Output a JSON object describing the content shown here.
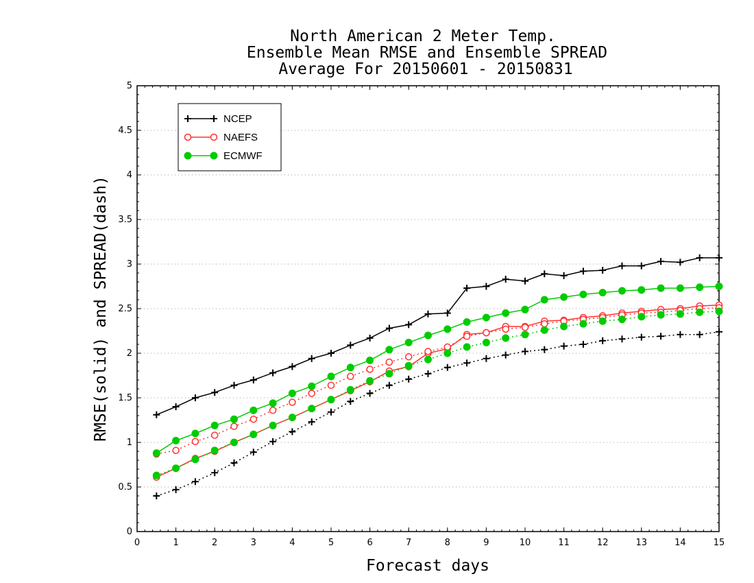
{
  "chart_data": {
    "type": "line",
    "title": [
      "North American 2 Meter Temp.",
      "Ensemble Mean RMSE and Ensemble SPREAD",
      "Average For 20150601 - 20150831"
    ],
    "xlabel": "Forecast days",
    "ylabel": "RMSE(solid) and SPREAD(dash)",
    "xlim": [
      0,
      15
    ],
    "ylim": [
      0,
      5
    ],
    "xticks": [
      0,
      1,
      2,
      3,
      4,
      5,
      6,
      7,
      8,
      9,
      10,
      11,
      12,
      13,
      14,
      15
    ],
    "yticks": [
      0,
      0.5,
      1,
      1.5,
      2,
      2.5,
      3,
      3.5,
      4,
      4.5,
      5
    ],
    "ytick_labels": [
      "0",
      "0.5",
      "1",
      "1.5",
      "2",
      "2.5",
      "3",
      "3.5",
      "4",
      "4.5",
      "5"
    ],
    "grid": "horizontal dotted",
    "legend_placement": "top-left",
    "x": [
      0.5,
      1.0,
      1.5,
      2.0,
      2.5,
      3.0,
      3.5,
      4.0,
      4.5,
      5.0,
      5.5,
      6.0,
      6.5,
      7.0,
      7.5,
      8.0,
      8.5,
      9.0,
      9.5,
      10.0,
      10.5,
      11.0,
      11.5,
      12.0,
      12.5,
      13.0,
      13.5,
      14.0,
      14.5,
      15.0
    ],
    "series": [
      {
        "name": "NCEP",
        "metric": "RMSE",
        "style": "solid",
        "marker": "plus",
        "color": "#000000",
        "values": [
          1.31,
          1.4,
          1.5,
          1.56,
          1.64,
          1.7,
          1.78,
          1.85,
          1.94,
          2.0,
          2.09,
          2.17,
          2.28,
          2.32,
          2.44,
          2.45,
          2.73,
          2.75,
          2.83,
          2.81,
          2.89,
          2.87,
          2.92,
          2.93,
          2.98,
          2.98,
          3.03,
          3.02,
          3.07,
          3.07
        ]
      },
      {
        "name": "NCEP",
        "metric": "SPREAD",
        "style": "dash",
        "marker": "plus",
        "color": "#000000",
        "values": [
          0.4,
          0.47,
          0.56,
          0.66,
          0.77,
          0.89,
          1.01,
          1.12,
          1.23,
          1.34,
          1.46,
          1.55,
          1.64,
          1.71,
          1.77,
          1.84,
          1.89,
          1.94,
          1.98,
          2.02,
          2.04,
          2.08,
          2.1,
          2.14,
          2.16,
          2.18,
          2.19,
          2.21,
          2.21,
          2.24
        ]
      },
      {
        "name": "NAEFS",
        "metric": "RMSE",
        "style": "solid",
        "marker": "open-circle",
        "color": "#ff3030",
        "values": [
          0.61,
          0.71,
          0.82,
          0.9,
          1.0,
          1.09,
          1.19,
          1.28,
          1.38,
          1.48,
          1.58,
          1.68,
          1.8,
          1.85,
          2.0,
          2.05,
          2.21,
          2.23,
          2.3,
          2.3,
          2.36,
          2.37,
          2.4,
          2.42,
          2.45,
          2.47,
          2.49,
          2.5,
          2.53,
          2.54
        ]
      },
      {
        "name": "NAEFS",
        "metric": "SPREAD",
        "style": "dash",
        "marker": "open-circle",
        "color": "#ff3030",
        "values": [
          0.87,
          0.91,
          1.01,
          1.08,
          1.18,
          1.26,
          1.36,
          1.45,
          1.55,
          1.64,
          1.74,
          1.82,
          1.9,
          1.96,
          2.02,
          2.07,
          2.19,
          2.23,
          2.27,
          2.29,
          2.33,
          2.36,
          2.38,
          2.4,
          2.43,
          2.45,
          2.46,
          2.48,
          2.5,
          2.51
        ]
      },
      {
        "name": "ECMWF",
        "metric": "RMSE",
        "style": "solid",
        "marker": "filled-circle",
        "color": "#00cc00",
        "values": [
          0.88,
          1.02,
          1.1,
          1.19,
          1.26,
          1.36,
          1.44,
          1.55,
          1.63,
          1.74,
          1.84,
          1.92,
          2.04,
          2.12,
          2.2,
          2.27,
          2.35,
          2.4,
          2.45,
          2.49,
          2.6,
          2.63,
          2.66,
          2.68,
          2.7,
          2.71,
          2.73,
          2.73,
          2.74,
          2.75
        ]
      },
      {
        "name": "ECMWF",
        "metric": "SPREAD",
        "style": "dash",
        "marker": "filled-circle",
        "color": "#00cc00",
        "values": [
          0.63,
          0.71,
          0.81,
          0.91,
          1.0,
          1.09,
          1.19,
          1.28,
          1.38,
          1.48,
          1.59,
          1.69,
          1.77,
          1.86,
          1.93,
          2.0,
          2.07,
          2.12,
          2.17,
          2.21,
          2.26,
          2.3,
          2.33,
          2.36,
          2.38,
          2.41,
          2.43,
          2.44,
          2.46,
          2.47
        ]
      }
    ],
    "legend": [
      {
        "name": "NCEP",
        "marker": "plus",
        "color": "#000000"
      },
      {
        "name": "NAEFS",
        "marker": "open-circle",
        "color": "#ff3030"
      },
      {
        "name": "ECMWF",
        "marker": "filled-circle",
        "color": "#00cc00"
      }
    ]
  }
}
